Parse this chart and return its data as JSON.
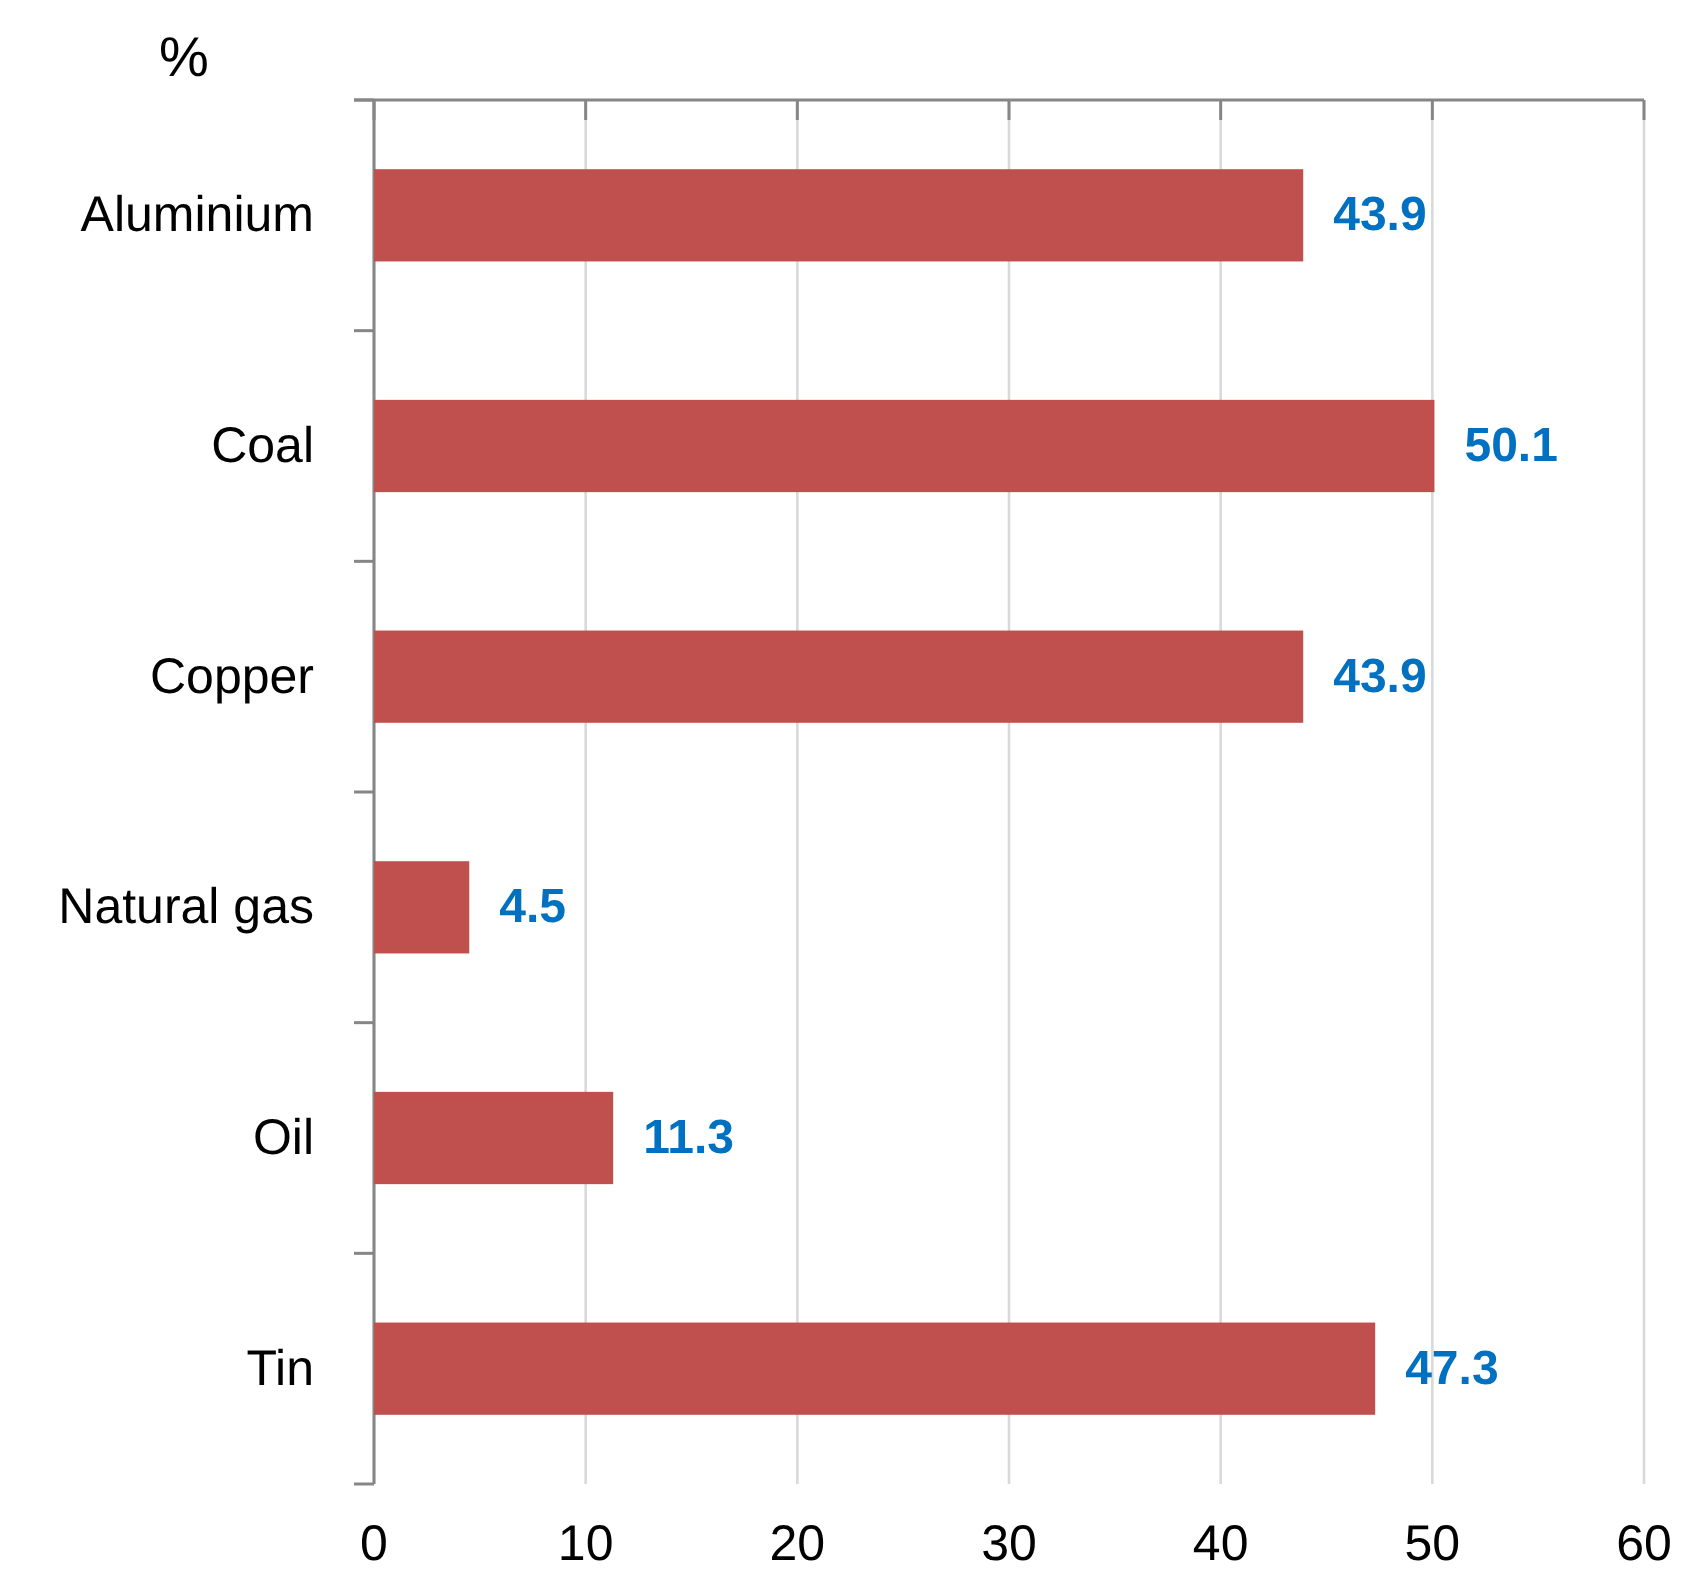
{
  "chart_data": {
    "type": "bar",
    "orientation": "horizontal",
    "xlabel": "%",
    "categories": [
      "Aluminium",
      "Coal",
      "Copper",
      "Natural gas",
      "Oil",
      "Tin"
    ],
    "values": [
      43.9,
      50.1,
      43.9,
      4.5,
      11.3,
      47.3
    ],
    "color": "#c0504d",
    "xlim": [
      0,
      60
    ],
    "xticks": [
      0,
      10,
      20,
      30,
      40,
      50,
      60
    ],
    "grid": "x",
    "data_labels": true
  }
}
